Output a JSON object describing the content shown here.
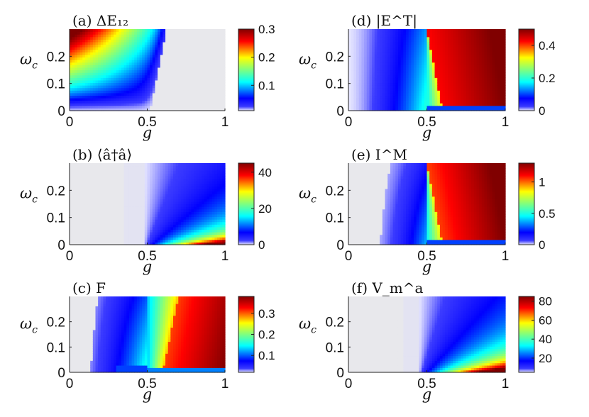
{
  "chart_data": [
    {
      "id": "a",
      "type": "heatmap",
      "title": "(a) ΔE₁₂",
      "xlabel": "g",
      "ylabel": "ω_c",
      "xlim": [
        0,
        1
      ],
      "ylim": [
        0,
        0.3
      ],
      "xticks": [
        "0",
        "0.5",
        "1"
      ],
      "yticks": [
        "0",
        "0.1",
        "0.2"
      ],
      "colorbar": {
        "range": [
          0.01,
          0.3
        ],
        "ticks": [
          "0.1",
          "0.2",
          "0.3"
        ],
        "tick_values": [
          0.1,
          0.2,
          0.3
        ]
      },
      "description": "Gap largest (~0.3) for small g and large ω_c; drops to ~0 beyond a boundary g≈0.5–0.6; low near ω_c≈0 for g<0.5."
    },
    {
      "id": "d",
      "type": "heatmap",
      "title": "(d) |E^T|",
      "xlabel": "g",
      "ylabel": "ω_c",
      "xlim": [
        0,
        1
      ],
      "ylim": [
        0,
        0.3
      ],
      "xticks": [
        "0",
        "0.5",
        "1"
      ],
      "yticks": [
        "0",
        "0.1",
        "0.2"
      ],
      "colorbar": {
        "range": [
          0,
          0.5
        ],
        "ticks": [
          "0",
          "0.2",
          "0.4"
        ],
        "tick_values": [
          0,
          0.2,
          0.4
        ]
      },
      "description": "Near 0 for small g, ~0.15 just left of g≈0.5–0.6, rises to ~0.4–0.5 for g>0.6."
    },
    {
      "id": "b",
      "type": "heatmap",
      "title": "(b) ⟨â†â⟩",
      "xlabel": "g",
      "ylabel": "ω_c",
      "xlim": [
        0,
        1
      ],
      "ylim": [
        0,
        0.3
      ],
      "xticks": [
        "0",
        "0.5",
        "1"
      ],
      "yticks": [
        "0",
        "0.1",
        "0.2"
      ],
      "colorbar": {
        "range": [
          0,
          45
        ],
        "ticks": [
          "0",
          "20",
          "40"
        ],
        "tick_values": [
          0,
          20,
          40
        ]
      },
      "description": "Zero for g<0.5; photon number grows above g=0.5, largest (~45) at small ω_c and large g."
    },
    {
      "id": "e",
      "type": "heatmap",
      "title": "(e) I^M",
      "xlabel": "g",
      "ylabel": "ω_c",
      "xlim": [
        0,
        1
      ],
      "ylim": [
        0,
        0.3
      ],
      "xticks": [
        "0",
        "0.5",
        "1"
      ],
      "yticks": [
        "0",
        "0.1",
        "0.2"
      ],
      "colorbar": {
        "range": [
          0,
          1.3
        ],
        "ticks": [
          "0",
          "0.5",
          "1"
        ],
        "tick_values": [
          0,
          0.5,
          1
        ]
      },
      "description": "Near 0 for small g, ~0.4 near the boundary, rising to ~1.2 for g>0.6."
    },
    {
      "id": "c",
      "type": "heatmap",
      "title": "(c) F",
      "xlabel": "g",
      "ylabel": "ω_c",
      "xlim": [
        0,
        1
      ],
      "ylim": [
        0,
        0.3
      ],
      "xticks": [
        "0",
        "0.5",
        "1"
      ],
      "yticks": [
        "0",
        "0.1",
        "0.2"
      ],
      "colorbar": {
        "range": [
          0.02,
          0.38
        ],
        "ticks": [
          "0.1",
          "0.2",
          "0.3"
        ],
        "tick_values": [
          0.1,
          0.2,
          0.3
        ]
      },
      "description": "Near 0 for small g, dip near ω_c≈0 at g≈0.5, rising to ~0.35 for large g."
    },
    {
      "id": "f",
      "type": "heatmap",
      "title": "(f) V_m^a",
      "xlabel": "g",
      "ylabel": "ω_c",
      "xlim": [
        0,
        1
      ],
      "ylim": [
        0,
        0.3
      ],
      "xticks": [
        "0",
        "0.5",
        "1"
      ],
      "yticks": [
        "0",
        "0.1",
        "0.2"
      ],
      "colorbar": {
        "range": [
          5,
          85
        ],
        "ticks": [
          "20",
          "40",
          "60",
          "80"
        ],
        "tick_values": [
          20,
          40,
          60,
          80
        ]
      },
      "description": "Near 0 for g<0.5; grows above g=0.5, largest (~85) at small ω_c and large g."
    }
  ]
}
